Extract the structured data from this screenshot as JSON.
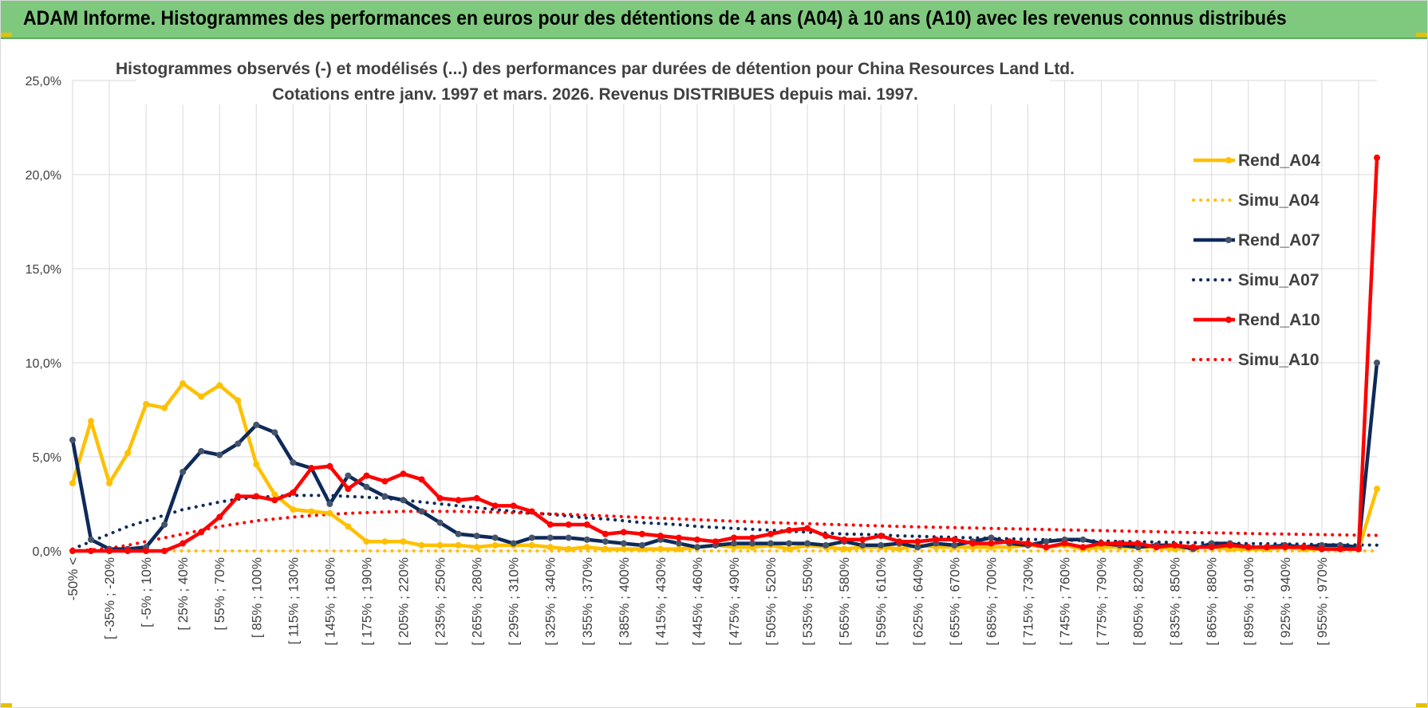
{
  "header": {
    "title": "ADAM Informe. Histogrammes des performances en euros pour des détentions de 4 ans (A04) à 10 ans (A10) avec les revenus connus distribués"
  },
  "colors": {
    "banner": "#7fc97f",
    "A04": "#ffc000",
    "A07": "#0e2a5a",
    "A07_marker": "#44546a",
    "A10": "#ff0000",
    "grid": "#d9d9d9"
  },
  "chart_data": {
    "type": "line",
    "title_lines": [
      "Histogrammes observés (-) et modélisés (...) des performances par durées de détention pour China Resources Land Ltd.",
      "Cotations entre janv. 1997 et mars. 2026. Revenus DISTRIBUES depuis mai. 1997."
    ],
    "ylim": [
      0,
      25
    ],
    "y_ticks": [
      "0,0%",
      "5,0%",
      "10,0%",
      "15,0%",
      "20,0%",
      "25,0%"
    ],
    "x_labels": [
      "-50% <",
      "[ -35% ; -20%",
      "[ -5% ; 10%",
      "[ 25% ; 40%",
      "[ 55% ; 70%",
      "[ 85% ; 100%",
      "[ 115% ; 130%",
      "[ 145% ; 160%",
      "[ 175% ; 190%",
      "[ 205% ; 220%",
      "[ 235% ; 250%",
      "[ 265% ; 280%",
      "[ 295% ; 310%",
      "[ 325% ; 340%",
      "[ 355% ; 370%",
      "[ 385% ; 400%",
      "[ 415% ; 430%",
      "[ 445% ; 460%",
      "[ 475% ; 490%",
      "[ 505% ; 520%",
      "[ 535% ; 550%",
      "[ 565% ; 580%",
      "[ 595% ; 610%",
      "[ 625% ; 640%",
      "[ 655% ; 670%",
      "[ 685% ; 700%",
      "[ 715% ; 730%",
      "[ 745% ; 760%",
      "[ 775% ; 790%",
      "[ 805% ; 820%",
      "[ 835% ; 850%",
      "[ 865% ; 880%",
      "[ 895% ; 910%",
      "[ 925% ; 940%",
      "[ 955% ; 970%"
    ],
    "series": [
      {
        "name": "Rend_A04",
        "style": "solid",
        "color": "#ffc000",
        "values": [
          3.6,
          6.9,
          3.6,
          5.2,
          7.8,
          7.6,
          8.9,
          8.2,
          8.8,
          8.0,
          4.6,
          3.0,
          2.2,
          2.1,
          2.0,
          1.3,
          0.5,
          0.5,
          0.5,
          0.3,
          0.3,
          0.3,
          0.2,
          0.3,
          0.3,
          0.3,
          0.2,
          0.1,
          0.2,
          0.1,
          0.1,
          0.1,
          0.1,
          0.1,
          0.2,
          0.3,
          0.2,
          0.2,
          0.3,
          0.1,
          0.3,
          0.2,
          0.1,
          0.2,
          0.2,
          0.1,
          0.3,
          0.2,
          0.2,
          0.2,
          0.2,
          0.2,
          0.3,
          0.2,
          0.3,
          0.1,
          0.2,
          0.2,
          0.2,
          0.2,
          0.1,
          0.2,
          0.2,
          0.1,
          0.1,
          0.1,
          0.2,
          0.1,
          0.1,
          0.1,
          0.1,
          3.3
        ]
      },
      {
        "name": "Simu_A04",
        "style": "dotted",
        "color": "#ffc000",
        "values": [
          0.0,
          0.0,
          0.0,
          0.0,
          0.0,
          0.0,
          0.0,
          0.0,
          0.0,
          0.0,
          0.0,
          0.0,
          0.0,
          0.0,
          0.0,
          0.0,
          0.0,
          0.0,
          0.0,
          0.0,
          0.0,
          0.0,
          0.0,
          0.0,
          0.0,
          0.0,
          0.0,
          0.0,
          0.0,
          0.0,
          0.0,
          0.0,
          0.0,
          0.0,
          0.0,
          0.0,
          0.0,
          0.0,
          0.0,
          0.0,
          0.0,
          0.0,
          0.0,
          0.0,
          0.0,
          0.0,
          0.0,
          0.0,
          0.0,
          0.0,
          0.0,
          0.0,
          0.0,
          0.0,
          0.0,
          0.0,
          0.0,
          0.0,
          0.0,
          0.0,
          0.0,
          0.0,
          0.0,
          0.0,
          0.0,
          0.0,
          0.0,
          0.0,
          0.0,
          0.0,
          0.0,
          0.0
        ]
      },
      {
        "name": "Rend_A07",
        "style": "solid",
        "color": "#0e2a5a",
        "values": [
          5.9,
          0.6,
          0.1,
          0.1,
          0.2,
          1.4,
          4.2,
          5.3,
          5.1,
          5.7,
          6.7,
          6.3,
          4.7,
          4.4,
          2.5,
          4.0,
          3.4,
          2.9,
          2.7,
          2.1,
          1.5,
          0.9,
          0.8,
          0.7,
          0.4,
          0.7,
          0.7,
          0.7,
          0.6,
          0.5,
          0.4,
          0.3,
          0.6,
          0.4,
          0.2,
          0.3,
          0.4,
          0.4,
          0.4,
          0.4,
          0.4,
          0.3,
          0.5,
          0.3,
          0.3,
          0.4,
          0.2,
          0.4,
          0.3,
          0.5,
          0.7,
          0.4,
          0.3,
          0.5,
          0.6,
          0.6,
          0.4,
          0.3,
          0.2,
          0.3,
          0.3,
          0.1,
          0.4,
          0.4,
          0.2,
          0.2,
          0.3,
          0.2,
          0.3,
          0.3,
          0.2,
          10.0
        ]
      },
      {
        "name": "Simu_A07",
        "style": "dotted",
        "color": "#0e2a5a",
        "values": [
          0.1,
          0.5,
          0.9,
          1.3,
          1.6,
          1.9,
          2.2,
          2.4,
          2.6,
          2.75,
          2.85,
          2.9,
          2.95,
          2.95,
          2.95,
          2.9,
          2.85,
          2.8,
          2.7,
          2.6,
          2.5,
          2.4,
          2.3,
          2.2,
          2.1,
          2.0,
          1.95,
          1.85,
          1.75,
          1.7,
          1.6,
          1.5,
          1.45,
          1.4,
          1.3,
          1.25,
          1.2,
          1.15,
          1.1,
          1.05,
          1.0,
          0.95,
          0.9,
          0.88,
          0.85,
          0.8,
          0.78,
          0.75,
          0.72,
          0.7,
          0.67,
          0.65,
          0.62,
          0.6,
          0.57,
          0.55,
          0.53,
          0.51,
          0.49,
          0.47,
          0.45,
          0.44,
          0.42,
          0.41,
          0.39,
          0.38,
          0.37,
          0.36,
          0.34,
          0.33,
          0.32,
          0.31
        ]
      },
      {
        "name": "Rend_A10",
        "style": "solid",
        "color": "#ff0000",
        "values": [
          0.0,
          0.0,
          0.0,
          0.0,
          0.0,
          0.0,
          0.4,
          1.0,
          1.8,
          2.9,
          2.9,
          2.7,
          3.1,
          4.4,
          4.5,
          3.3,
          4.0,
          3.7,
          4.1,
          3.8,
          2.8,
          2.7,
          2.8,
          2.4,
          2.4,
          2.1,
          1.4,
          1.4,
          1.4,
          0.9,
          1.0,
          0.9,
          0.8,
          0.7,
          0.6,
          0.5,
          0.7,
          0.7,
          0.9,
          1.1,
          1.2,
          0.8,
          0.6,
          0.6,
          0.8,
          0.5,
          0.5,
          0.6,
          0.6,
          0.4,
          0.4,
          0.5,
          0.4,
          0.2,
          0.4,
          0.2,
          0.4,
          0.4,
          0.4,
          0.2,
          0.3,
          0.2,
          0.2,
          0.3,
          0.2,
          0.2,
          0.2,
          0.2,
          0.1,
          0.1,
          0.1,
          20.9
        ]
      },
      {
        "name": "Simu_A10",
        "style": "dotted",
        "color": "#ff0000",
        "values": [
          0.0,
          0.05,
          0.15,
          0.3,
          0.5,
          0.7,
          0.9,
          1.1,
          1.3,
          1.45,
          1.6,
          1.7,
          1.8,
          1.88,
          1.94,
          2.0,
          2.04,
          2.07,
          2.1,
          2.1,
          2.1,
          2.1,
          2.08,
          2.06,
          2.03,
          2.0,
          1.97,
          1.94,
          1.9,
          1.86,
          1.82,
          1.78,
          1.74,
          1.7,
          1.66,
          1.62,
          1.58,
          1.55,
          1.51,
          1.48,
          1.45,
          1.42,
          1.39,
          1.36,
          1.33,
          1.3,
          1.28,
          1.26,
          1.24,
          1.22,
          1.2,
          1.18,
          1.16,
          1.14,
          1.12,
          1.1,
          1.08,
          1.06,
          1.04,
          1.02,
          1.0,
          0.98,
          0.96,
          0.95,
          0.93,
          0.91,
          0.9,
          0.88,
          0.87,
          0.85,
          0.84,
          0.83
        ]
      }
    ]
  }
}
